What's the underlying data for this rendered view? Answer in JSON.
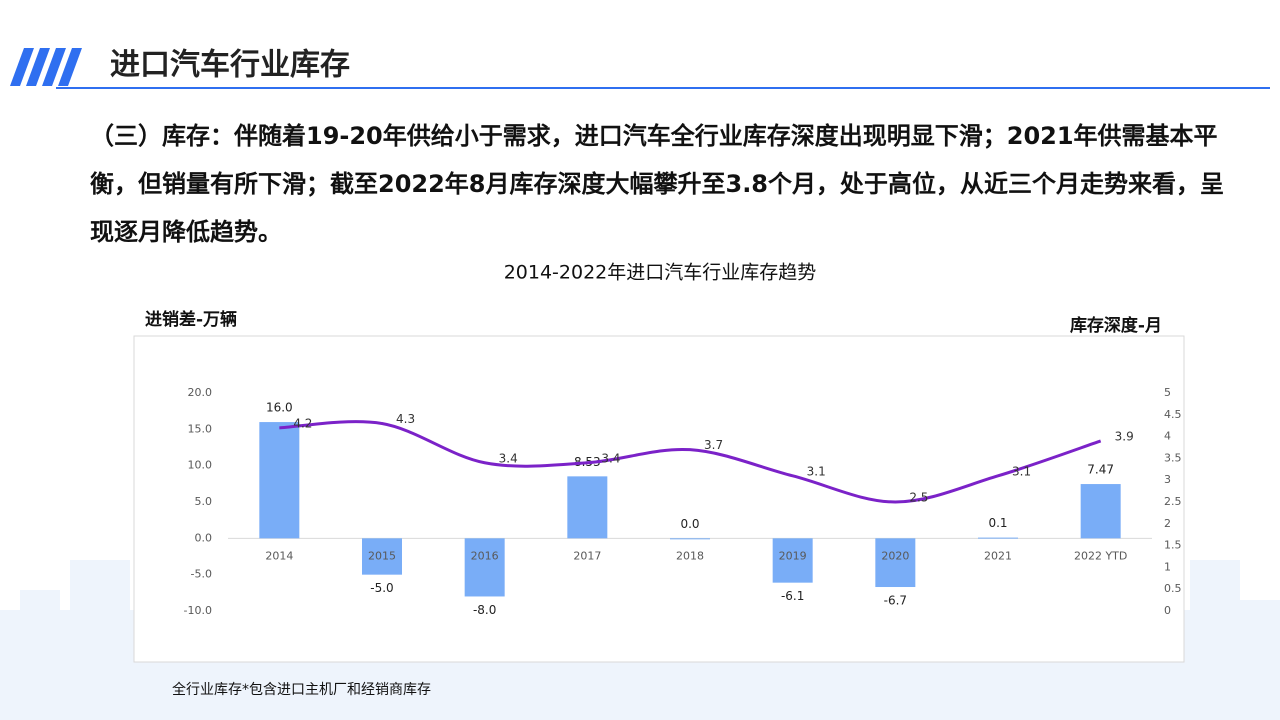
{
  "header": {
    "title": "进口汽车行业库存"
  },
  "paragraph": "（三）库存：伴随着19-20年供给小于需求，进口汽车全行业库存深度出现明显下滑；2021年供需基本平衡，但销量有所下滑；截至2022年8月库存深度大幅攀升至3.8个月，处于高位，从近三个月走势来看，呈现逐月降低趋势。",
  "footnote": "全行业库存*包含进口主机厂和经销商库存",
  "chart_data": {
    "type": "bar",
    "title": "2014-2022年进口汽车行业库存趋势",
    "y_label": "进销差-万辆",
    "y2_label": "库存深度-月",
    "categories": [
      "2014",
      "2015",
      "2016",
      "2017",
      "2018",
      "2019",
      "2020",
      "2021",
      "2022 YTD"
    ],
    "series": [
      {
        "type": "bar",
        "color": "#79adf7",
        "values": [
          16,
          -5,
          -8,
          8.53,
          0,
          -6.1,
          -6.7,
          0.1,
          7.47
        ],
        "value_labels": [
          "16.0",
          "-5.0",
          "-8.0",
          "8.53",
          "0.0",
          "-6.1",
          "-6.7",
          "0.1",
          "7.47"
        ]
      },
      {
        "type": "line",
        "axis": "y2",
        "color": "#7b22c8",
        "values": [
          4.2,
          4.3,
          3.4,
          3.4,
          3.7,
          3.1,
          2.5,
          3.1,
          3.9
        ]
      }
    ],
    "ylim": [
      -10,
      20
    ],
    "yticks": [
      {
        "value": -10,
        "label": "-10.0"
      },
      {
        "value": -5,
        "label": "-5.0"
      },
      {
        "value": 0,
        "label": "0.0"
      },
      {
        "value": 5,
        "label": "5.0"
      },
      {
        "value": 10,
        "label": "10.0"
      },
      {
        "value": 15,
        "label": "15.0"
      },
      {
        "value": 20,
        "label": "20.0"
      }
    ],
    "y2lim": [
      0,
      5
    ],
    "y2ticks": [
      0,
      0.5,
      1,
      1.5,
      2,
      2.5,
      3,
      3.5,
      4,
      4.5,
      5
    ]
  }
}
